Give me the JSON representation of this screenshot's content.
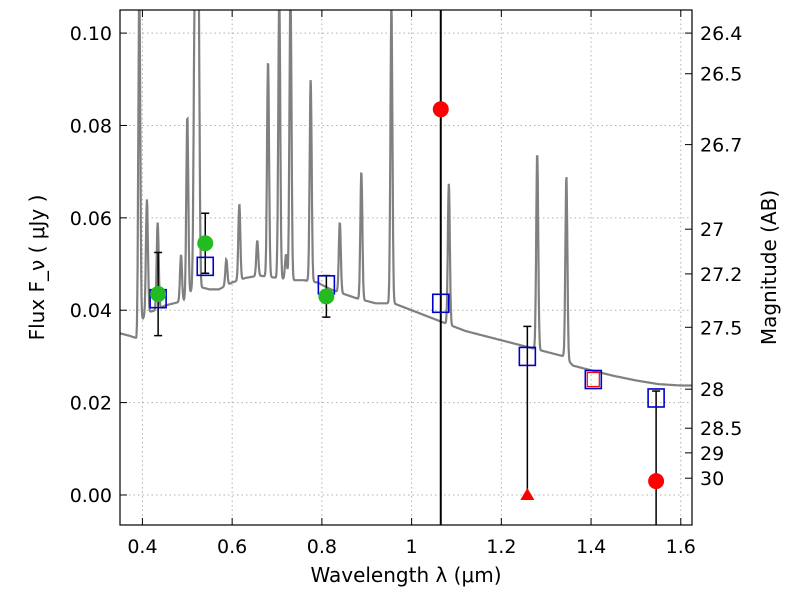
{
  "chart_data": {
    "type": "scatter",
    "xlabel": "Wavelength  λ (μm)",
    "ylabel": "Flux  F_ν  ( μJy )",
    "y2label": "Magnitude (AB)",
    "xlim": [
      0.35,
      1.625
    ],
    "ylim": [
      -0.0065,
      0.105
    ],
    "grid": true,
    "x_ticks": [
      {
        "value": 0.4,
        "label": "0.4"
      },
      {
        "value": 0.6,
        "label": "0.6"
      },
      {
        "value": 0.8,
        "label": "0.8"
      },
      {
        "value": 1.0,
        "label": "1"
      },
      {
        "value": 1.2,
        "label": "1.2"
      },
      {
        "value": 1.4,
        "label": "1.4"
      },
      {
        "value": 1.6,
        "label": "1.6"
      }
    ],
    "y_ticks": [
      {
        "value": 0.0,
        "label": "0.00"
      },
      {
        "value": 0.02,
        "label": "0.02"
      },
      {
        "value": 0.04,
        "label": "0.04"
      },
      {
        "value": 0.06,
        "label": "0.06"
      },
      {
        "value": 0.08,
        "label": "0.08"
      },
      {
        "value": 0.1,
        "label": "0.10"
      }
    ],
    "y2_ticks": [
      {
        "value": 26.4,
        "label": "26.4"
      },
      {
        "value": 26.5,
        "label": "26.5"
      },
      {
        "value": 26.7,
        "label": "26.7"
      },
      {
        "value": 27.0,
        "label": "27"
      },
      {
        "value": 27.2,
        "label": "27.2"
      },
      {
        "value": 27.5,
        "label": "27.5"
      },
      {
        "value": 28.0,
        "label": "28"
      },
      {
        "value": 28.5,
        "label": "28.5"
      },
      {
        "value": 29.0,
        "label": "29"
      },
      {
        "value": 30.0,
        "label": "30"
      }
    ],
    "vertical_line_x": 1.065,
    "colors": {
      "template": "#808080",
      "detected": "#22bb22",
      "nondetected": "#ff0000",
      "model_box": "#0000cc",
      "errorbar": "#000000",
      "grid": "#b0b0b0"
    },
    "template_spectrum": {
      "continuum": [
        [
          0.35,
          0.035
        ],
        [
          0.37,
          0.0345
        ],
        [
          0.385,
          0.034
        ],
        [
          0.39,
          0.032
        ],
        [
          0.395,
          0.036
        ],
        [
          0.4,
          0.038
        ],
        [
          0.41,
          0.0395
        ],
        [
          0.43,
          0.04
        ],
        [
          0.45,
          0.041
        ],
        [
          0.47,
          0.0415
        ],
        [
          0.49,
          0.042
        ],
        [
          0.5,
          0.0425
        ],
        [
          0.51,
          0.0445
        ],
        [
          0.53,
          0.045
        ],
        [
          0.55,
          0.0445
        ],
        [
          0.57,
          0.0445
        ],
        [
          0.6,
          0.046
        ],
        [
          0.63,
          0.047
        ],
        [
          0.66,
          0.0475
        ],
        [
          0.7,
          0.047
        ],
        [
          0.73,
          0.0465
        ],
        [
          0.76,
          0.0465
        ],
        [
          0.79,
          0.046
        ],
        [
          0.82,
          0.0445
        ],
        [
          0.85,
          0.0435
        ],
        [
          0.88,
          0.0425
        ],
        [
          0.92,
          0.0415
        ],
        [
          0.96,
          0.0415
        ],
        [
          1.0,
          0.04
        ],
        [
          1.04,
          0.0385
        ],
        [
          1.08,
          0.037
        ],
        [
          1.12,
          0.0355
        ],
        [
          1.16,
          0.0345
        ],
        [
          1.22,
          0.033
        ],
        [
          1.28,
          0.0315
        ],
        [
          1.34,
          0.03
        ],
        [
          1.36,
          0.028
        ],
        [
          1.4,
          0.027
        ],
        [
          1.45,
          0.0258
        ],
        [
          1.5,
          0.0248
        ],
        [
          1.55,
          0.024
        ],
        [
          1.6,
          0.0237
        ],
        [
          1.625,
          0.0237
        ]
      ],
      "lines": [
        {
          "x": 0.393,
          "peak": 0.11
        },
        {
          "x": 0.41,
          "peak": 0.064
        },
        {
          "x": 0.434,
          "peak": 0.059
        },
        {
          "x": 0.486,
          "peak": 0.052
        },
        {
          "x": 0.5,
          "peak": 0.082
        },
        {
          "x": 0.516,
          "peak": 0.094
        },
        {
          "x": 0.52,
          "peak": 0.11
        },
        {
          "x": 0.525,
          "peak": 0.11
        },
        {
          "x": 0.587,
          "peak": 0.051
        },
        {
          "x": 0.616,
          "peak": 0.063
        },
        {
          "x": 0.656,
          "peak": 0.055
        },
        {
          "x": 0.68,
          "peak": 0.094
        },
        {
          "x": 0.705,
          "peak": 0.108
        },
        {
          "x": 0.72,
          "peak": 0.052
        },
        {
          "x": 0.73,
          "peak": 0.11
        },
        {
          "x": 0.775,
          "peak": 0.09
        },
        {
          "x": 0.84,
          "peak": 0.059
        },
        {
          "x": 0.888,
          "peak": 0.07
        },
        {
          "x": 0.955,
          "peak": 0.106
        },
        {
          "x": 1.083,
          "peak": 0.0675
        },
        {
          "x": 1.28,
          "peak": 0.074
        },
        {
          "x": 1.345,
          "peak": 0.069
        }
      ]
    },
    "series": [
      {
        "name": "detected",
        "marker": "circle",
        "x": [
          0.435,
          0.54,
          0.81
        ],
        "y": [
          0.0435,
          0.0545,
          0.043
        ],
        "yerr": [
          0.009,
          0.0065,
          0.0045
        ]
      },
      {
        "name": "nondetected",
        "marker": "circle",
        "x": [
          1.065,
          1.545
        ],
        "y": [
          0.0835,
          0.003
        ]
      },
      {
        "name": "upper_limit",
        "marker": "triangle",
        "x": [
          1.258
        ],
        "y": [
          0.0
        ],
        "yerr_top": [
          0.0365
        ]
      },
      {
        "name": "model",
        "marker": "square",
        "x": [
          0.435,
          0.54,
          0.81,
          1.065,
          1.258,
          1.405,
          1.545
        ],
        "y": [
          0.0425,
          0.0495,
          0.0455,
          0.0415,
          0.03,
          0.025,
          0.021
        ]
      }
    ],
    "extra_errorbars": [
      {
        "x": 1.545,
        "y_low": -0.0065,
        "y_high": 0.0225
      }
    ]
  }
}
